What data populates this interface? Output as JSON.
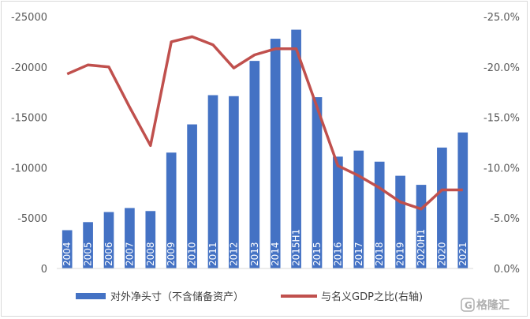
{
  "chart_data": {
    "type": "bar+line",
    "categories": [
      "2004",
      "2005",
      "2006",
      "2007",
      "2008",
      "2009",
      "2010",
      "2011",
      "2012",
      "2013",
      "2014",
      "2015H1",
      "2015",
      "2016",
      "2017",
      "2018",
      "2019",
      "2020H1",
      "2020",
      "2021"
    ],
    "series": [
      {
        "name": "对外净头寸（不含储备资产）",
        "type": "bar",
        "axis": "left",
        "color": "#4472c4",
        "values": [
          -3800,
          -4600,
          -5600,
          -6000,
          -5700,
          -11500,
          -14300,
          -17200,
          -17100,
          -20600,
          -22800,
          -23700,
          -17000,
          -11100,
          -11700,
          -10600,
          -9200,
          -8300,
          -12000,
          -13500
        ]
      },
      {
        "name": "与名义GDP之比(右轴)",
        "type": "line",
        "axis": "right",
        "color": "#c0504d",
        "values": [
          -19.3,
          -20.2,
          -20.0,
          -16.0,
          -12.2,
          -22.5,
          -23.0,
          -22.2,
          -19.9,
          -21.2,
          -21.8,
          -21.8,
          -16.0,
          -10.2,
          -9.2,
          -8.0,
          -6.6,
          -5.9,
          -7.8,
          -7.8
        ]
      }
    ],
    "y_left": {
      "ticks": [
        "-25000",
        "-20000",
        "-15000",
        "-10000",
        "-5000",
        "0"
      ],
      "range": [
        0,
        -25000
      ],
      "reversed": true
    },
    "y_right": {
      "ticks": [
        "-25.0%",
        "-20.0%",
        "-15.0%",
        "-10.0%",
        "-5.0%",
        "0.0%"
      ],
      "range": [
        0,
        -25
      ],
      "reversed": true
    },
    "grid": false,
    "legend": "bottom"
  },
  "watermark": {
    "text": "格隆汇",
    "icon": "gelonghui-logo-icon"
  }
}
